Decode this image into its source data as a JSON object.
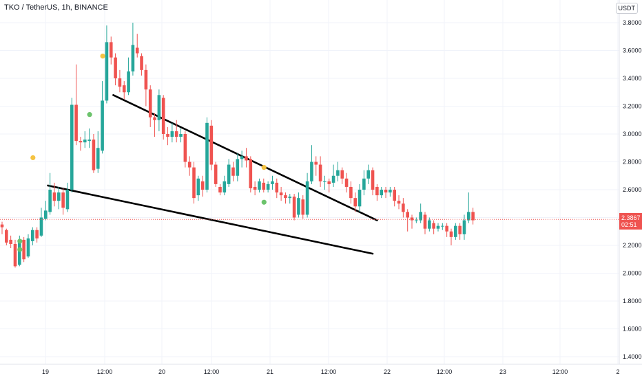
{
  "header": {
    "title": "TKO / TetherUS, 1h, BINANCE",
    "currency": "USDT"
  },
  "last_price": {
    "value": "2.3867",
    "countdown": "02:51"
  },
  "colors": {
    "up": "#26a69a",
    "down": "#ef5350",
    "marker_orange": "#f5c342",
    "marker_green": "#6cc36c",
    "trendline": "#000000"
  },
  "chart_data": {
    "type": "candlestick",
    "title": "TKO / TetherUS, 1h, BINANCE",
    "ylim": [
      1.32,
      3.87
    ],
    "y_ticks": [
      "3.8000",
      "3.6000",
      "3.4000",
      "3.2000",
      "3.0000",
      "2.8000",
      "2.6000",
      "2.4000",
      "2.2000",
      "2.0000",
      "1.8000",
      "1.6000",
      "1.4000"
    ],
    "x_ticks": [
      "19",
      "12:00",
      "20",
      "12:00",
      "21",
      "12:00",
      "22",
      "12:00",
      "23",
      "12:00",
      "2"
    ],
    "last_price": 2.3867,
    "candles": [
      [
        2.35,
        2.33,
        2.28,
        2.37
      ],
      [
        2.31,
        2.22,
        2.2,
        2.32
      ],
      [
        2.24,
        2.21,
        2.18,
        2.27
      ],
      [
        2.21,
        2.05,
        2.04,
        2.24
      ],
      [
        2.06,
        2.24,
        2.05,
        2.27
      ],
      [
        2.24,
        2.1,
        2.08,
        2.26
      ],
      [
        2.12,
        2.25,
        2.11,
        2.28
      ],
      [
        2.23,
        2.31,
        2.2,
        2.33
      ],
      [
        2.31,
        2.25,
        2.22,
        2.33
      ],
      [
        2.27,
        2.4,
        2.26,
        2.47
      ],
      [
        2.39,
        2.45,
        2.38,
        2.52
      ],
      [
        2.44,
        2.6,
        2.42,
        2.72
      ],
      [
        2.58,
        2.52,
        2.48,
        2.65
      ],
      [
        2.52,
        2.58,
        2.46,
        2.62
      ],
      [
        2.58,
        2.47,
        2.42,
        2.61
      ],
      [
        2.46,
        2.6,
        2.44,
        2.65
      ],
      [
        2.6,
        3.21,
        2.58,
        3.26
      ],
      [
        3.21,
        2.95,
        2.92,
        3.5
      ],
      [
        2.95,
        2.94,
        2.88,
        2.98
      ],
      [
        2.94,
        2.96,
        2.9,
        3.02
      ],
      [
        2.95,
        2.96,
        2.9,
        3.04
      ],
      [
        2.96,
        2.74,
        2.72,
        3.0
      ],
      [
        2.75,
        2.9,
        2.72,
        3.02
      ],
      [
        2.88,
        3.24,
        2.86,
        3.38
      ],
      [
        3.24,
        3.66,
        3.22,
        3.78
      ],
      [
        3.66,
        3.55,
        3.5,
        3.7
      ],
      [
        3.55,
        3.4,
        3.35,
        3.58
      ],
      [
        3.4,
        3.34,
        3.3,
        3.46
      ],
      [
        3.35,
        3.3,
        3.25,
        3.38
      ],
      [
        3.3,
        3.45,
        3.28,
        3.55
      ],
      [
        3.45,
        3.64,
        3.42,
        3.8
      ],
      [
        3.62,
        3.58,
        3.55,
        3.72
      ],
      [
        3.56,
        3.46,
        3.42,
        3.58
      ],
      [
        3.46,
        3.32,
        3.2,
        3.5
      ],
      [
        3.32,
        3.12,
        3.05,
        3.35
      ],
      [
        3.12,
        3.1,
        2.98,
        3.15
      ],
      [
        3.1,
        3.28,
        3.02,
        3.32
      ],
      [
        3.26,
        3.0,
        2.96,
        3.28
      ],
      [
        3.0,
        2.98,
        2.92,
        3.05
      ],
      [
        2.98,
        3.02,
        2.94,
        3.08
      ],
      [
        3.02,
        2.98,
        2.94,
        3.1
      ],
      [
        2.98,
        3.0,
        2.94,
        3.04
      ],
      [
        3.0,
        2.8,
        2.76,
        3.02
      ],
      [
        2.8,
        2.76,
        2.7,
        2.84
      ],
      [
        2.76,
        2.54,
        2.5,
        2.8
      ],
      [
        2.56,
        2.68,
        2.52,
        2.7
      ],
      [
        2.66,
        2.6,
        2.55,
        2.7
      ],
      [
        2.6,
        3.08,
        2.58,
        3.12
      ],
      [
        3.06,
        2.78,
        2.74,
        3.1
      ],
      [
        2.78,
        2.64,
        2.62,
        2.8
      ],
      [
        2.62,
        2.58,
        2.56,
        2.64
      ],
      [
        2.58,
        2.66,
        2.56,
        2.7
      ],
      [
        2.64,
        2.78,
        2.62,
        2.82
      ],
      [
        2.76,
        2.7,
        2.66,
        2.8
      ],
      [
        2.7,
        2.82,
        2.66,
        2.86
      ],
      [
        2.82,
        2.84,
        2.76,
        2.88
      ],
      [
        2.84,
        2.81,
        2.76,
        2.9
      ],
      [
        2.82,
        2.61,
        2.58,
        2.84
      ],
      [
        2.62,
        2.6,
        2.56,
        2.66
      ],
      [
        2.6,
        2.66,
        2.58,
        2.68
      ],
      [
        2.65,
        2.6,
        2.58,
        2.68
      ],
      [
        2.6,
        2.64,
        2.58,
        2.66
      ],
      [
        2.64,
        2.66,
        2.6,
        2.7
      ],
      [
        2.65,
        2.58,
        2.54,
        2.68
      ],
      [
        2.58,
        2.56,
        2.52,
        2.62
      ],
      [
        2.56,
        2.54,
        2.5,
        2.58
      ],
      [
        2.54,
        2.55,
        2.5,
        2.57
      ],
      [
        2.55,
        2.4,
        2.38,
        2.57
      ],
      [
        2.42,
        2.54,
        2.4,
        2.58
      ],
      [
        2.53,
        2.42,
        2.39,
        2.56
      ],
      [
        2.42,
        2.66,
        2.4,
        2.72
      ],
      [
        2.66,
        2.8,
        2.64,
        2.92
      ],
      [
        2.8,
        2.78,
        2.7,
        2.84
      ],
      [
        2.78,
        2.66,
        2.62,
        2.84
      ],
      [
        2.66,
        2.66,
        2.6,
        2.7
      ],
      [
        2.66,
        2.64,
        2.58,
        2.68
      ],
      [
        2.65,
        2.7,
        2.62,
        2.78
      ],
      [
        2.7,
        2.74,
        2.66,
        2.8
      ],
      [
        2.74,
        2.68,
        2.64,
        2.76
      ],
      [
        2.68,
        2.62,
        2.58,
        2.72
      ],
      [
        2.62,
        2.54,
        2.5,
        2.66
      ],
      [
        2.54,
        2.48,
        2.44,
        2.58
      ],
      [
        2.48,
        2.6,
        2.44,
        2.64
      ],
      [
        2.6,
        2.68,
        2.56,
        2.74
      ],
      [
        2.68,
        2.74,
        2.64,
        2.78
      ],
      [
        2.74,
        2.6,
        2.56,
        2.76
      ],
      [
        2.62,
        2.56,
        2.52,
        2.64
      ],
      [
        2.56,
        2.6,
        2.54,
        2.62
      ],
      [
        2.6,
        2.58,
        2.54,
        2.62
      ],
      [
        2.58,
        2.6,
        2.55,
        2.62
      ],
      [
        2.6,
        2.52,
        2.48,
        2.62
      ],
      [
        2.52,
        2.5,
        2.46,
        2.56
      ],
      [
        2.5,
        2.44,
        2.4,
        2.54
      ],
      [
        2.44,
        2.4,
        2.3,
        2.46
      ],
      [
        2.4,
        2.38,
        2.32,
        2.42
      ],
      [
        2.38,
        2.38,
        2.36,
        2.4
      ],
      [
        2.38,
        2.44,
        2.36,
        2.5
      ],
      [
        2.42,
        2.32,
        2.28,
        2.44
      ],
      [
        2.32,
        2.38,
        2.3,
        2.4
      ],
      [
        2.36,
        2.32,
        2.28,
        2.38
      ],
      [
        2.32,
        2.34,
        2.3,
        2.36
      ],
      [
        2.34,
        2.34,
        2.31,
        2.36
      ],
      [
        2.34,
        2.3,
        2.26,
        2.36
      ],
      [
        2.3,
        2.26,
        2.2,
        2.32
      ],
      [
        2.26,
        2.34,
        2.24,
        2.36
      ],
      [
        2.34,
        2.28,
        2.24,
        2.36
      ],
      [
        2.28,
        2.38,
        2.24,
        2.42
      ],
      [
        2.38,
        2.44,
        2.36,
        2.58
      ],
      [
        2.44,
        2.38,
        2.35,
        2.47
      ]
    ],
    "markers": [
      {
        "type": "green",
        "candle": 4,
        "price": 2.23
      },
      {
        "type": "green",
        "candle": 4,
        "price": 2.17
      },
      {
        "type": "orange",
        "candle": 7,
        "price": 2.83
      },
      {
        "type": "green",
        "candle": 20,
        "price": 3.14
      },
      {
        "type": "orange",
        "candle": 23,
        "price": 3.56
      },
      {
        "type": "orange",
        "candle": 60,
        "price": 2.76
      },
      {
        "type": "green",
        "candle": 60,
        "price": 2.51
      }
    ],
    "trendlines": [
      {
        "x1_candle": 25.5,
        "y1": 3.28,
        "x2_candle": 86,
        "y2": 2.38
      },
      {
        "x1_candle": 10.5,
        "y1": 2.63,
        "x2_candle": 85,
        "y2": 2.14
      }
    ]
  }
}
